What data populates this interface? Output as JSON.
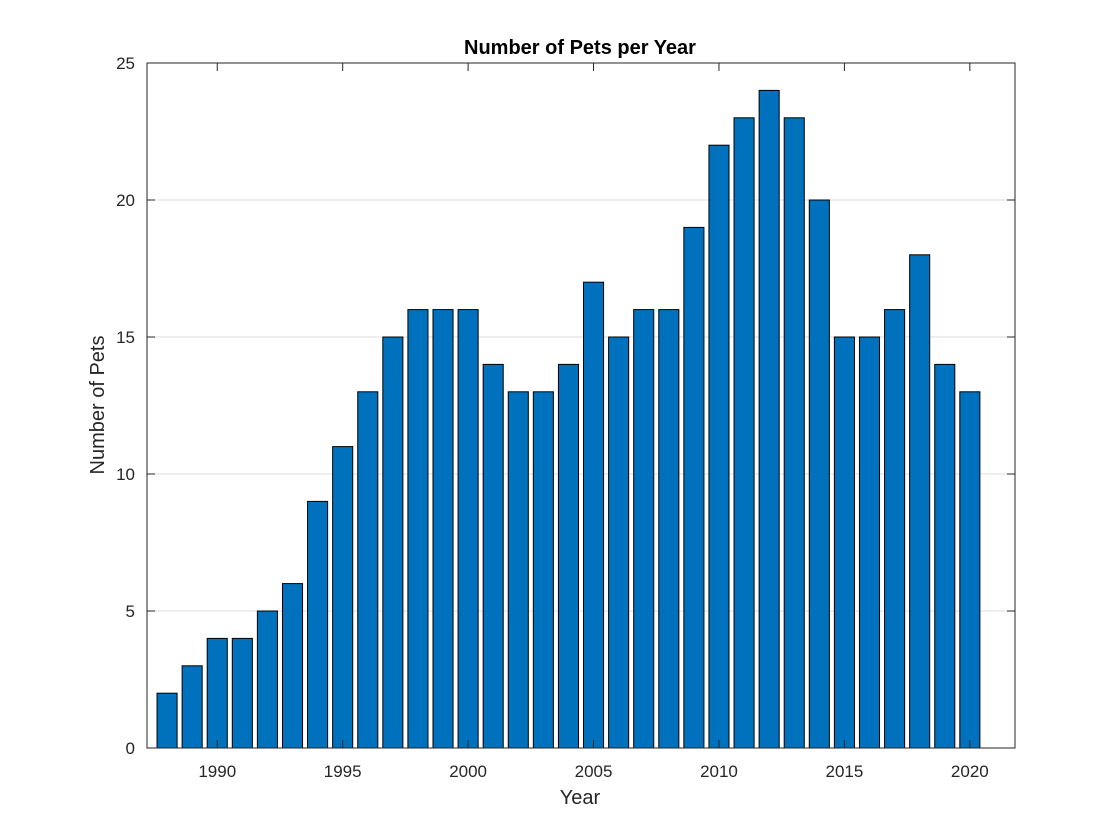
{
  "chart_data": {
    "type": "bar",
    "title": "Number of Pets per Year",
    "xlabel": "Year",
    "ylabel": "Number of Pets",
    "x": [
      1988,
      1989,
      1990,
      1991,
      1992,
      1993,
      1994,
      1995,
      1996,
      1997,
      1998,
      1999,
      2000,
      2001,
      2002,
      2003,
      2004,
      2005,
      2006,
      2007,
      2008,
      2009,
      2010,
      2011,
      2012,
      2013,
      2014,
      2015,
      2016,
      2017,
      2018,
      2019,
      2020
    ],
    "values": [
      2,
      3,
      4,
      4,
      5,
      6,
      9,
      11,
      13,
      15,
      16,
      16,
      16,
      14,
      13,
      13,
      14,
      17,
      15,
      16,
      16,
      19,
      22,
      23,
      24,
      23,
      20,
      15,
      15,
      16,
      18,
      14,
      13
    ],
    "xlim": [
      1987.2,
      2021.8
    ],
    "ylim": [
      0,
      25
    ],
    "xticks": [
      1990,
      1995,
      2000,
      2005,
      2010,
      2015,
      2020
    ],
    "yticks": [
      0,
      5,
      10,
      15,
      20,
      25
    ],
    "grid": "y-major",
    "bar_color": "#0072BD",
    "edge_color": "#000000"
  }
}
